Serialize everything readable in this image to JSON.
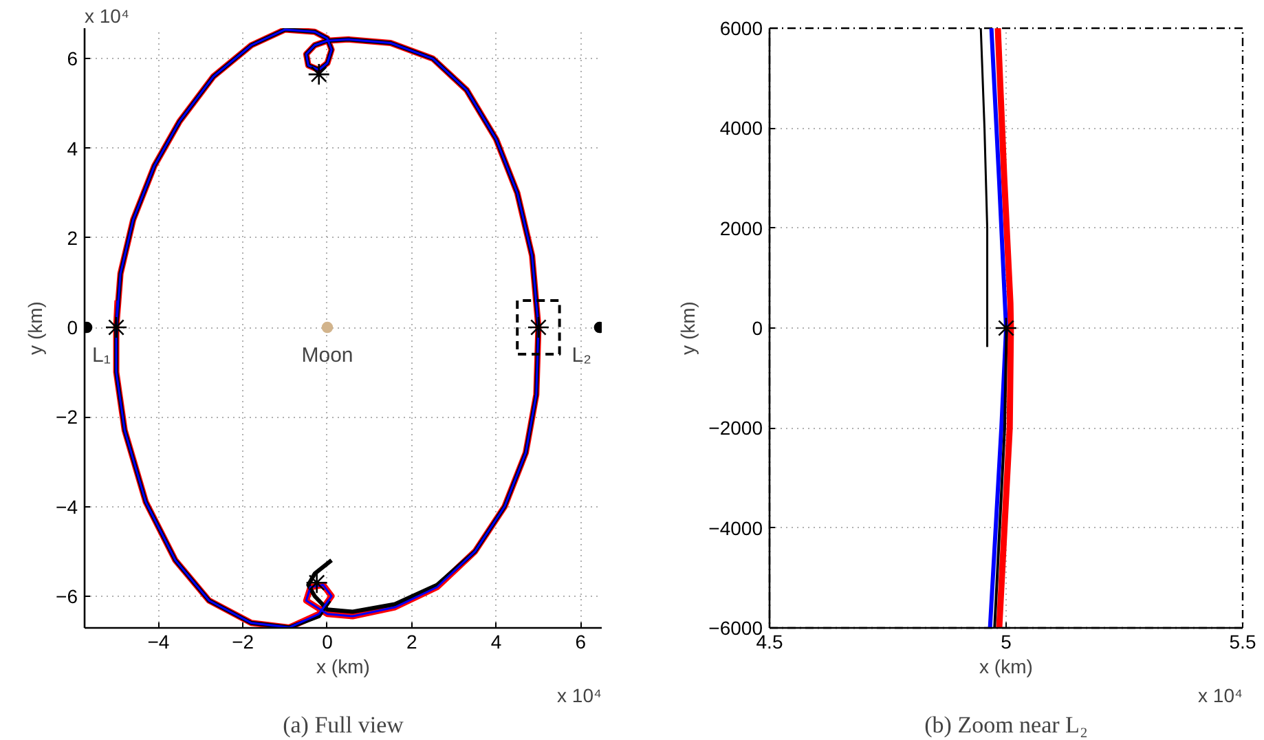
{
  "chart_data": [
    {
      "type": "line",
      "title": "(a) Full view",
      "xlabel": "x (km)",
      "ylabel": "y (km)",
      "xlim": [
        -5.75,
        6.5
      ],
      "ylim": [
        -6.71,
        6.68
      ],
      "xticks": [
        {
          "value": -4,
          "label": "−4"
        },
        {
          "value": -2,
          "label": "−2"
        },
        0,
        2,
        4,
        6
      ],
      "yticks": [
        {
          "value": -6,
          "label": "−6"
        },
        {
          "value": -4,
          "label": "−4"
        },
        {
          "value": -2,
          "label": "−2"
        },
        0,
        2,
        4,
        6
      ],
      "grid": true,
      "line_style": "solid",
      "series": [
        {
          "color": "#ff0000",
          "x": [
            -5.0,
            -4.9,
            -4.6,
            -4.1,
            -3.5,
            -2.7,
            -1.8,
            -1.0,
            -0.3,
            0,
            0.1,
            0,
            -0.2,
            -0.45,
            -0.5,
            -0.3,
            0,
            0.5,
            1.5,
            2.5,
            3.3,
            4.0,
            4.5,
            4.85,
            5.0,
            4.95,
            4.7,
            4.2,
            3.5,
            2.6,
            1.6,
            0.6,
            0,
            -0.5,
            -0.4,
            -0.1,
            0.1,
            -0.2,
            -0.9,
            -1.8,
            -2.8,
            -3.6,
            -4.3,
            -4.8,
            -5.0,
            -5.0,
            -4.97
          ],
          "values": [
            0,
            1.2,
            2.4,
            3.6,
            4.6,
            5.6,
            6.3,
            6.65,
            6.6,
            6.45,
            6.2,
            5.9,
            5.75,
            5.85,
            6.1,
            6.3,
            6.4,
            6.43,
            6.35,
            6.0,
            5.3,
            4.2,
            3.0,
            1.6,
            0,
            -1.5,
            -2.8,
            -4.0,
            -5.0,
            -5.8,
            -6.25,
            -6.45,
            -6.4,
            -6.1,
            -5.8,
            -5.75,
            -6.0,
            -6.4,
            -6.7,
            -6.6,
            -6.1,
            -5.2,
            -3.9,
            -2.3,
            -1.0,
            0,
            0.6
          ]
        },
        {
          "color": "#000000",
          "x": [
            0.1,
            -0.3,
            -0.45,
            -0.3,
            0,
            0.6,
            1.6,
            2.6,
            3.5,
            4.2,
            4.7,
            4.95,
            5.0,
            4.85,
            4.5,
            4.0,
            3.3,
            2.5,
            1.5,
            0.5,
            0,
            -0.3,
            -0.5,
            -0.45,
            -0.2,
            0,
            0.1,
            0,
            -0.3,
            -1.0,
            -1.8,
            -2.7,
            -3.5,
            -4.1,
            -4.6,
            -4.9,
            -5.0,
            -5.0,
            -4.8,
            -4.3,
            -3.6,
            -2.8,
            -1.8,
            -0.9,
            -0.2,
            0.05
          ],
          "values": [
            -5.2,
            -5.5,
            -5.75,
            -6.0,
            -6.3,
            -6.35,
            -6.18,
            -5.75,
            -5.0,
            -4.0,
            -2.8,
            -1.5,
            0,
            1.6,
            3.0,
            4.2,
            5.3,
            6.0,
            6.35,
            6.43,
            6.4,
            6.3,
            6.1,
            5.85,
            5.75,
            5.9,
            6.2,
            6.45,
            6.6,
            6.65,
            6.3,
            5.6,
            4.6,
            3.6,
            2.4,
            1.2,
            0,
            -1.0,
            -2.3,
            -3.9,
            -5.2,
            -6.1,
            -6.6,
            -6.7,
            -6.45,
            -6.1
          ]
        },
        {
          "color": "#0000ff",
          "x": [
            -5.0,
            -4.9,
            -4.6,
            -4.1,
            -3.5,
            -2.7,
            -1.8,
            -1.0,
            -0.3,
            0,
            0.1,
            0,
            -0.2,
            -0.45,
            -0.5,
            -0.3,
            0,
            0.5,
            1.5,
            2.5,
            3.3,
            4.0,
            4.5,
            4.85,
            5.0,
            4.95,
            4.7,
            4.2,
            3.5,
            2.6,
            1.6,
            0.6,
            0,
            -0.5,
            -0.4,
            -0.1,
            0.1,
            -0.2,
            -0.9,
            -1.8,
            -2.8,
            -3.6,
            -4.3,
            -4.8,
            -5.0,
            -5.0,
            -4.97
          ],
          "values": [
            0,
            1.2,
            2.4,
            3.6,
            4.6,
            5.6,
            6.3,
            6.65,
            6.6,
            6.45,
            6.2,
            5.9,
            5.75,
            5.85,
            6.1,
            6.3,
            6.4,
            6.43,
            6.35,
            6.0,
            5.3,
            4.2,
            3.0,
            1.6,
            0,
            -1.5,
            -2.8,
            -4.0,
            -5.0,
            -5.8,
            -6.25,
            -6.45,
            -6.4,
            -6.1,
            -5.8,
            -5.75,
            -6.0,
            -6.4,
            -6.7,
            -6.6,
            -6.1,
            -5.2,
            -3.9,
            -2.3,
            -1.0,
            0,
            0.6
          ]
        },
        {
          "type": "line",
          "line_style": "dashed",
          "color": "#000000",
          "x": [
            4.5,
            4.5,
            5.5,
            5.5,
            4.5,
            4.5
          ],
          "values": [
            0,
            -0.6,
            -0.6,
            0.6,
            0.6,
            0.05
          ]
        },
        {
          "type": "scatter",
          "marker": "cross",
          "color": "#000000",
          "x": [
            -5.0,
            5.0,
            -0.2,
            -0.25
          ],
          "values": [
            0,
            0,
            5.65,
            -5.7
          ]
        },
        {
          "type": "scatter",
          "marker": "circle",
          "color": "#000000",
          "x": [
            -5.7,
            6.45
          ],
          "values": [
            0,
            0
          ]
        },
        {
          "type": "scatter",
          "marker": "circle",
          "color": "#d2b48c",
          "x": [
            0
          ],
          "values": [
            0
          ]
        }
      ],
      "annotations": [
        "x 10⁴",
        "x 10⁴",
        {
          "text": "Moon",
          "x": 0,
          "y": 0
        },
        {
          "text": "L₁",
          "x": -5.7,
          "y": 0
        },
        {
          "text": "L₂",
          "x": 6.45,
          "y": 0
        }
      ]
    },
    {
      "type": "line",
      "title": "(b) Zoom near L₂",
      "xlabel": "x (km)",
      "ylabel": "y (km)",
      "xlim": [
        4.5,
        5.5
      ],
      "ylim": [
        -6000,
        6000
      ],
      "xticks": [
        4.5,
        5,
        5.5
      ],
      "yticks": [
        {
          "value": -6000,
          "label": "−6000"
        },
        {
          "value": -4000,
          "label": "−4000"
        },
        {
          "value": -2000,
          "label": "−2000"
        },
        0,
        2000,
        4000,
        6000
      ],
      "grid": true,
      "line_style": "solid",
      "series": [
        {
          "color": "#ff0000",
          "x": [
            4.9825,
            4.996,
            5.009,
            5.01,
            5.0076,
            4.9854
          ],
          "values": [
            6000,
            3000,
            500,
            0,
            -2000,
            -6000
          ]
        },
        {
          "color": "#0000ff",
          "x": [
            4.9689,
            4.985,
            5.0,
            4.99,
            4.966
          ],
          "values": [
            6000,
            3000,
            0,
            -2000,
            -6000
          ]
        },
        {
          "color": "#000000",
          "x": [
            4.9465,
            4.9543,
            4.9601,
            4.9601
          ],
          "values": [
            6000,
            4000,
            2000,
            -380
          ]
        },
        {
          "type": "line",
          "color": "#000000",
          "x": [
            5.001,
            4.997,
            4.9756
          ],
          "values": [
            0,
            -2000,
            -6000
          ]
        },
        {
          "type": "scatter",
          "marker": "cross",
          "color": "#000000",
          "x": [
            5.0
          ],
          "values": [
            0
          ]
        }
      ],
      "annotations": [
        "x 10⁴"
      ]
    }
  ]
}
